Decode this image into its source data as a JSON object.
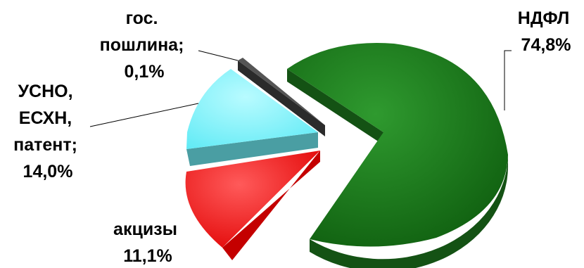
{
  "chart_data": {
    "type": "pie",
    "style": "3d-exploded",
    "legend": "none",
    "slices": [
      {
        "name": "НДФЛ",
        "value": 74.8,
        "value_text": "74,8%",
        "color": "#1f7a1f",
        "side_color": "#145214",
        "label_lines": [
          "НДФЛ",
          "74,8%"
        ]
      },
      {
        "name": "акцизы",
        "value": 11.1,
        "value_text": "11,1%",
        "color": "#ff2a2a",
        "side_color": "#c40000",
        "label_lines": [
          "акцизы",
          "11,1%"
        ]
      },
      {
        "name": "УСНО, ЕСХН, патент",
        "value": 14.0,
        "value_text": "14,0%",
        "color": "#7cf4ff",
        "side_color": "#4a9ea3",
        "label_lines": [
          "УСНО,",
          "ЕСХН,",
          "патент;",
          "14,0%"
        ]
      },
      {
        "name": "гос. пошлина",
        "value": 0.1,
        "value_text": "0,1%",
        "color": "#555555",
        "side_color": "#2b2b2b",
        "label_lines": [
          "гос.",
          "пошлина;",
          "0,1%"
        ]
      }
    ]
  }
}
